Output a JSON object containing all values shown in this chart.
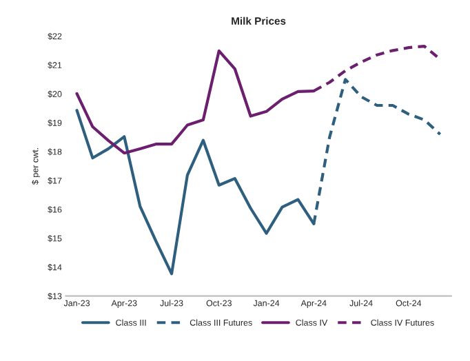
{
  "chart_data": {
    "type": "line",
    "title": "Milk Prices",
    "ylabel": "$ per cwt.",
    "categories": [
      "Jan-23",
      null,
      null,
      "Apr-23",
      null,
      null,
      "Jul-23",
      null,
      null,
      "Oct-23",
      null,
      null,
      "Jan-24",
      null,
      null,
      "Apr-24",
      null,
      null,
      "Jul-24",
      null,
      null,
      "Oct-24",
      null,
      null
    ],
    "series": [
      {
        "name": "Class III",
        "color": "#2e5f7f",
        "line_style": "solid",
        "values": [
          19.43,
          17.78,
          18.1,
          18.52,
          16.11,
          14.91,
          13.77,
          17.19,
          18.39,
          16.84,
          17.07,
          16.04,
          15.17,
          16.08,
          16.34,
          15.5,
          null,
          null,
          null,
          null,
          null,
          null,
          null,
          null
        ]
      },
      {
        "name": "Class III Futures",
        "color": "#2e5f7f",
        "line_style": "dashed",
        "values": [
          null,
          null,
          null,
          null,
          null,
          null,
          null,
          null,
          null,
          null,
          null,
          null,
          null,
          null,
          null,
          15.5,
          18.5,
          20.5,
          19.9,
          19.6,
          19.6,
          19.3,
          19.1,
          18.6
        ]
      },
      {
        "name": "Class IV",
        "color": "#6b1f6e",
        "line_style": "solid",
        "values": [
          20.01,
          18.86,
          18.38,
          17.95,
          18.1,
          18.26,
          18.26,
          18.92,
          19.1,
          21.49,
          20.87,
          19.23,
          19.39,
          19.82,
          20.08,
          20.1,
          null,
          null,
          null,
          null,
          null,
          null,
          null,
          null
        ]
      },
      {
        "name": "Class IV Futures",
        "color": "#6b1f6e",
        "line_style": "dashed",
        "values": [
          null,
          null,
          null,
          null,
          null,
          null,
          null,
          null,
          null,
          null,
          null,
          null,
          null,
          null,
          null,
          20.1,
          20.4,
          20.8,
          21.1,
          21.35,
          21.5,
          21.6,
          21.65,
          21.2
        ]
      }
    ],
    "ylim": [
      13,
      22
    ],
    "yticks": [
      {
        "value": 13,
        "label": "$13"
      },
      {
        "value": 14,
        "label": "$14"
      },
      {
        "value": 15,
        "label": "$15"
      },
      {
        "value": 16,
        "label": "$16"
      },
      {
        "value": 17,
        "label": "$17"
      },
      {
        "value": 18,
        "label": "$18"
      },
      {
        "value": 19,
        "label": "$19"
      },
      {
        "value": 20,
        "label": "$20"
      },
      {
        "value": 21,
        "label": "$21"
      },
      {
        "value": 22,
        "label": "$22"
      }
    ],
    "legend": "bottom",
    "grid": false
  }
}
